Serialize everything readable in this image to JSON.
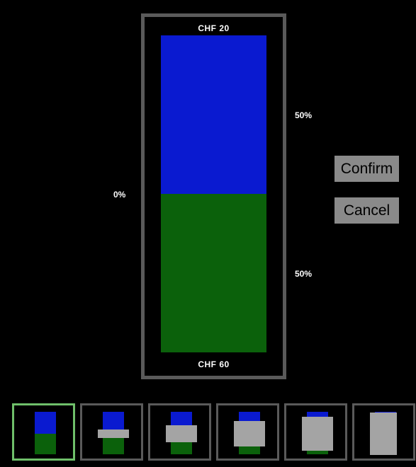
{
  "colors": {
    "top_fill": "#0a1ad0",
    "bottom_fill": "#0b610b",
    "frame": "#5a5a5a",
    "button_bg": "#8a8a8a",
    "thumb_selected_border": "#6fbf6a",
    "thumb_cover": "#a4a4a4"
  },
  "bar": {
    "top_label": "CHF  20",
    "bottom_label": "CHF  60",
    "top_share": 0.5,
    "bottom_share": 0.5
  },
  "percentages": {
    "top": "50%",
    "middle": "0%",
    "bottom": "50%"
  },
  "buttons": {
    "confirm_label": "Confirm",
    "cancel_label": "Cancel"
  },
  "thumbnails": {
    "selected_index": 0,
    "cover_levels": [
      0,
      0.2,
      0.4,
      0.6,
      0.8,
      1.0
    ]
  }
}
